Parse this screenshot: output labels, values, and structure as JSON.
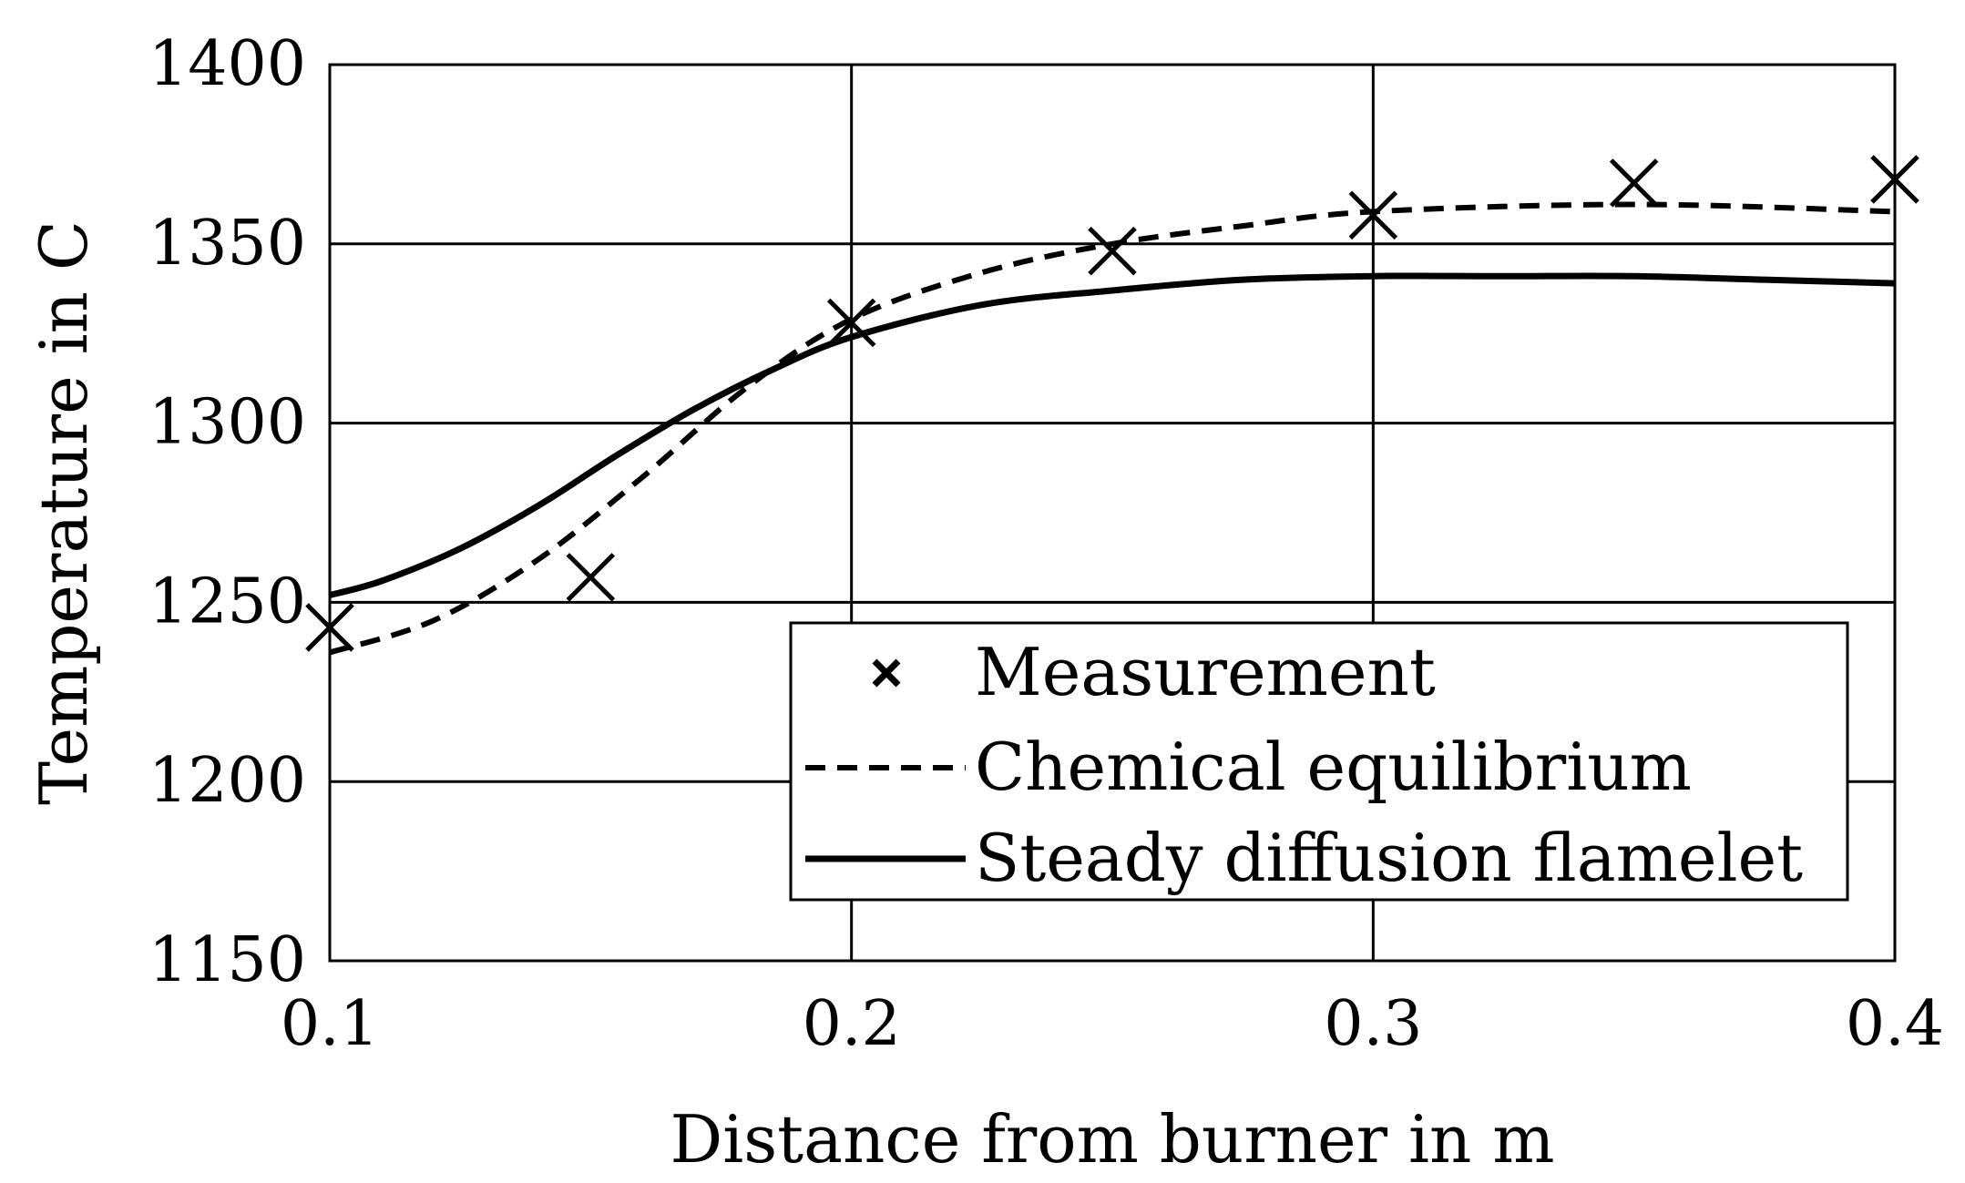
{
  "chart_data": {
    "type": "line",
    "title": "",
    "xlabel": "Distance from burner in m",
    "ylabel": "Temperature in C",
    "xlim": [
      0.1,
      0.4
    ],
    "ylim": [
      1150,
      1400
    ],
    "xticks": [
      0.1,
      0.2,
      0.3,
      0.4
    ],
    "yticks": [
      1150,
      1200,
      1250,
      1300,
      1350,
      1400
    ],
    "xtick_labels": [
      "0.1",
      "0.2",
      "0.3",
      "0.4"
    ],
    "ytick_labels": [
      "1150",
      "1200",
      "1250",
      "1300",
      "1350",
      "1400"
    ],
    "grid": true,
    "legend_position": "lower-right",
    "series": [
      {
        "name": "Measurement",
        "style": "markers-x",
        "color": "#000000",
        "points": [
          {
            "x": 0.1,
            "y": 1243
          },
          {
            "x": 0.15,
            "y": 1257
          },
          {
            "x": 0.2,
            "y": 1328
          },
          {
            "x": 0.25,
            "y": 1348
          },
          {
            "x": 0.3,
            "y": 1358
          },
          {
            "x": 0.35,
            "y": 1367
          },
          {
            "x": 0.4,
            "y": 1368
          }
        ]
      },
      {
        "name": "Chemical equilibrium",
        "style": "dashed",
        "color": "#000000",
        "points": [
          {
            "x": 0.1,
            "y": 1236
          },
          {
            "x": 0.12,
            "y": 1245
          },
          {
            "x": 0.14,
            "y": 1262
          },
          {
            "x": 0.16,
            "y": 1285
          },
          {
            "x": 0.18,
            "y": 1310
          },
          {
            "x": 0.2,
            "y": 1329
          },
          {
            "x": 0.225,
            "y": 1342
          },
          {
            "x": 0.25,
            "y": 1350
          },
          {
            "x": 0.275,
            "y": 1355
          },
          {
            "x": 0.3,
            "y": 1359
          },
          {
            "x": 0.35,
            "y": 1361
          },
          {
            "x": 0.4,
            "y": 1359
          }
        ]
      },
      {
        "name": "Steady diffusion flamelet",
        "style": "solid",
        "color": "#000000",
        "points": [
          {
            "x": 0.1,
            "y": 1252
          },
          {
            "x": 0.11,
            "y": 1256
          },
          {
            "x": 0.125,
            "y": 1265
          },
          {
            "x": 0.14,
            "y": 1277
          },
          {
            "x": 0.155,
            "y": 1291
          },
          {
            "x": 0.17,
            "y": 1304
          },
          {
            "x": 0.185,
            "y": 1315
          },
          {
            "x": 0.2,
            "y": 1324
          },
          {
            "x": 0.225,
            "y": 1333
          },
          {
            "x": 0.25,
            "y": 1337
          },
          {
            "x": 0.275,
            "y": 1340
          },
          {
            "x": 0.3,
            "y": 1341
          },
          {
            "x": 0.325,
            "y": 1341
          },
          {
            "x": 0.35,
            "y": 1341
          },
          {
            "x": 0.375,
            "y": 1340
          },
          {
            "x": 0.4,
            "y": 1339
          }
        ]
      }
    ]
  }
}
